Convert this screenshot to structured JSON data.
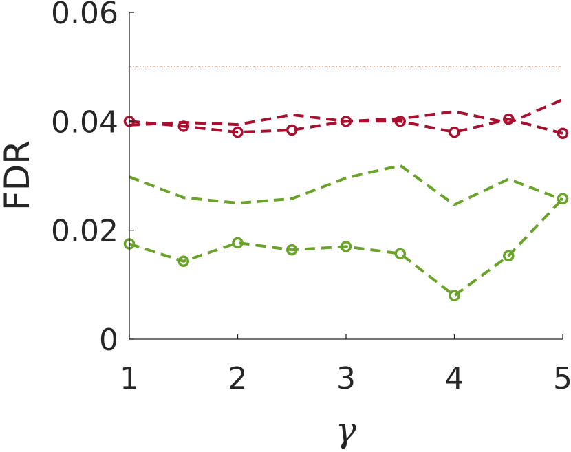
{
  "chart_data": {
    "type": "line",
    "xlabel": "γ",
    "ylabel": "FDR",
    "xlim": [
      1,
      5
    ],
    "ylim": [
      0,
      0.06
    ],
    "xticks": [
      "1",
      "2",
      "3",
      "4",
      "5"
    ],
    "yticks": [
      "0",
      "0.02",
      "0.04",
      "0.06"
    ],
    "grid": false,
    "reference_line": {
      "y": 0.05,
      "color": "#e8403a",
      "style": "dotted"
    },
    "series": [
      {
        "color": "#a8102f",
        "style": "dashed",
        "markers": "circle",
        "x": [
          1,
          1.5,
          2,
          2.5,
          3,
          3.5,
          4,
          4.5,
          5
        ],
        "y": [
          0.04,
          0.0391,
          0.038,
          0.0384,
          0.04,
          0.04,
          0.038,
          0.0404,
          0.0378
        ]
      },
      {
        "color": "#a8102f",
        "style": "dashed",
        "markers": "none",
        "x": [
          1,
          1.5,
          2,
          2.5,
          3,
          3.5,
          4,
          4.5,
          5
        ],
        "y": [
          0.0393,
          0.0398,
          0.0394,
          0.0412,
          0.04,
          0.0405,
          0.0418,
          0.0397,
          0.044
        ]
      },
      {
        "color": "#6aa329",
        "style": "dashed",
        "markers": "none",
        "x": [
          1,
          1.5,
          2,
          2.5,
          3,
          3.5,
          4,
          4.5,
          5
        ],
        "y": [
          0.0298,
          0.026,
          0.025,
          0.0258,
          0.0296,
          0.0319,
          0.0247,
          0.0294,
          0.0256
        ]
      },
      {
        "color": "#6aa329",
        "style": "dashed",
        "markers": "circle",
        "x": [
          1,
          1.5,
          2,
          2.5,
          3,
          3.5,
          4,
          4.5,
          5
        ],
        "y": [
          0.0175,
          0.0143,
          0.0177,
          0.0164,
          0.017,
          0.0157,
          0.008,
          0.0153,
          0.0258
        ]
      }
    ]
  }
}
